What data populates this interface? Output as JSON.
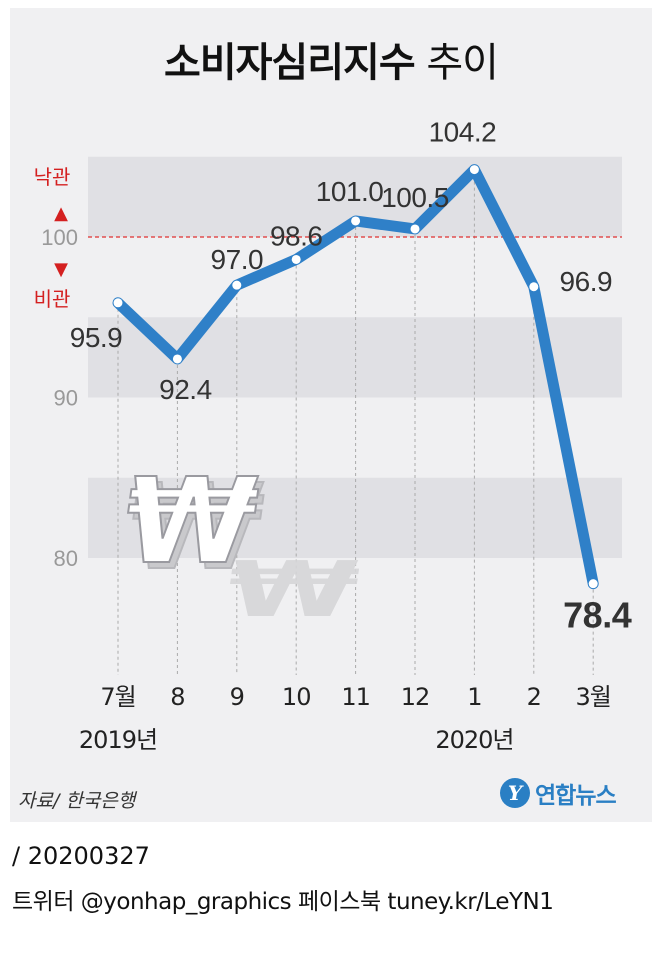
{
  "title": {
    "bold": "소비자심리지수",
    "light": "추이"
  },
  "annotations": {
    "optimism": "낙관",
    "pessimism": "비관",
    "up_arrow": "▲",
    "down_arrow": "▼"
  },
  "colors": {
    "line": "#2f80c8",
    "band": "#e0e0e4",
    "panel": "#f0f0f2",
    "ref_line": "#e03030",
    "alert_text": "#d42020",
    "axis_text": "#999999"
  },
  "chart_data": {
    "type": "line",
    "categories": [
      "7월",
      "8",
      "9",
      "10",
      "11",
      "12",
      "1",
      "2",
      "3월"
    ],
    "year_labels": [
      {
        "text": "2019년",
        "category_index": 0
      },
      {
        "text": "2020년",
        "category_index": 6
      }
    ],
    "series": [
      {
        "values": [
          95.9,
          92.4,
          97.0,
          98.6,
          101.0,
          100.5,
          104.2,
          96.9,
          78.4
        ],
        "labels": [
          "95.9",
          "92.4",
          "97.0",
          "98.6",
          "101.0",
          "100.5",
          "104.2",
          "96.9",
          "78.4"
        ]
      }
    ],
    "ylim": [
      73,
      107
    ],
    "yticks": [
      "80",
      "90",
      "100"
    ],
    "reference_line": 100,
    "shaded_bands": [
      [
        80,
        85
      ],
      [
        90,
        95
      ],
      [
        100,
        105
      ]
    ]
  },
  "decoration": "won-sign-icon",
  "source": "자료/ 한국은행",
  "logo": {
    "mark": "Y",
    "text": "연합뉴스"
  },
  "footer": {
    "date": "/ 20200327",
    "social": "트위터 @yonhap_graphics  페이스북 tuney.kr/LeYN1"
  }
}
